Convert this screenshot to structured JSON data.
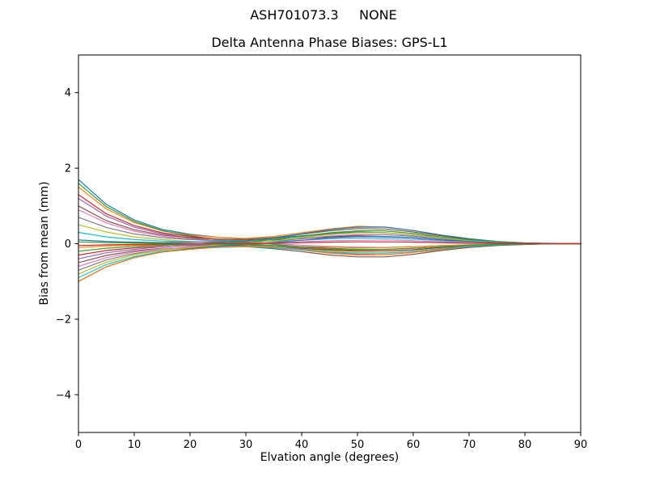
{
  "chart_data": {
    "type": "line",
    "title": "ASH701073.3     NONE",
    "subtitle": "Delta Antenna Phase Biases: GPS-L1",
    "xlabel": "Elvation angle (degrees)",
    "ylabel": "Bias from mean (mm)",
    "xlim": [
      0,
      90
    ],
    "ylim": [
      -5,
      5
    ],
    "xtick_values": [
      0,
      10,
      20,
      30,
      40,
      50,
      60,
      70,
      80,
      90
    ],
    "xtick_labels": [
      "0",
      "10",
      "20",
      "30",
      "40",
      "50",
      "60",
      "70",
      "80",
      "90"
    ],
    "ytick_values": [
      -4,
      -2,
      0,
      2,
      4
    ],
    "ytick_labels": [
      "−4",
      "−2",
      "0",
      "2",
      "4"
    ],
    "grid": false,
    "legend": "none",
    "background": "#ffffff",
    "axes_color": "#000000",
    "x": [
      0,
      5,
      10,
      15,
      20,
      25,
      30,
      35,
      40,
      45,
      50,
      55,
      60,
      65,
      70,
      75,
      80,
      85,
      90
    ],
    "series": [
      {
        "color": "#1f77b4",
        "values": [
          1.7,
          1.04,
          0.63,
          0.38,
          0.25,
          0.17,
          0.13,
          0.15,
          0.21,
          0.27,
          0.31,
          0.29,
          0.23,
          0.16,
          0.08,
          0.04,
          0.02,
          0,
          0
        ]
      },
      {
        "color": "#ff7f0e",
        "values": [
          1.5,
          0.92,
          0.56,
          0.34,
          0.23,
          0.17,
          0.14,
          0.19,
          0.29,
          0.39,
          0.46,
          0.44,
          0.35,
          0.23,
          0.13,
          0.06,
          0.02,
          0,
          0
        ]
      },
      {
        "color": "#2ca02c",
        "values": [
          1.6,
          0.98,
          0.59,
          0.35,
          0.21,
          0.11,
          0.05,
          -0.02,
          -0.08,
          -0.15,
          -0.18,
          -0.19,
          -0.16,
          -0.1,
          -0.06,
          -0.03,
          -0.01,
          0,
          0
        ]
      },
      {
        "color": "#d62728",
        "values": [
          1.3,
          0.79,
          0.48,
          0.29,
          0.19,
          0.12,
          0.1,
          0.1,
          0.14,
          0.18,
          0.21,
          0.19,
          0.16,
          0.1,
          0.06,
          0.03,
          0.01,
          0,
          0
        ]
      },
      {
        "color": "#9467bd",
        "values": [
          1.2,
          0.73,
          0.44,
          0.26,
          0.15,
          0.07,
          0.02,
          -0.06,
          -0.15,
          -0.24,
          -0.28,
          -0.29,
          -0.23,
          -0.16,
          -0.08,
          -0.04,
          -0.02,
          0,
          0
        ]
      },
      {
        "color": "#8c564b",
        "values": [
          1.0,
          0.61,
          0.37,
          0.23,
          0.16,
          0.12,
          0.11,
          0.16,
          0.25,
          0.34,
          0.4,
          0.39,
          0.31,
          0.21,
          0.11,
          0.05,
          0.02,
          0,
          0
        ]
      },
      {
        "color": "#e377c2",
        "values": [
          0.9,
          0.55,
          0.33,
          0.2,
          0.12,
          0.06,
          0.03,
          0,
          -0.04,
          -0.07,
          -0.09,
          -0.1,
          -0.08,
          -0.05,
          -0.03,
          -0.01,
          0,
          0,
          0
        ]
      },
      {
        "color": "#7f7f7f",
        "values": [
          0.7,
          0.43,
          0.26,
          0.16,
          0.11,
          0.09,
          0.08,
          0.12,
          0.19,
          0.26,
          0.3,
          0.29,
          0.23,
          0.16,
          0.08,
          0.04,
          0.02,
          0,
          0
        ]
      },
      {
        "color": "#bcbd22",
        "values": [
          0.5,
          0.31,
          0.18,
          0.11,
          0.06,
          0.02,
          -0.01,
          -0.07,
          -0.13,
          -0.2,
          -0.24,
          -0.24,
          -0.2,
          -0.13,
          -0.07,
          -0.03,
          -0.01,
          0,
          0
        ]
      },
      {
        "color": "#17becf",
        "values": [
          0.3,
          0.18,
          0.11,
          0.07,
          0.05,
          0.04,
          0.04,
          0.06,
          0.09,
          0.13,
          0.15,
          0.15,
          0.12,
          0.08,
          0.04,
          0.02,
          0.01,
          0,
          0
        ]
      },
      {
        "color": "#1f77b4",
        "values": [
          0.1,
          0.06,
          0.04,
          0.03,
          0.04,
          0.05,
          0.07,
          0.15,
          0.26,
          0.37,
          0.44,
          0.44,
          0.35,
          0.23,
          0.13,
          0.06,
          0.02,
          0.01,
          0
        ]
      },
      {
        "color": "#ff7f0e",
        "values": [
          -0.1,
          -0.06,
          -0.04,
          -0.03,
          -0.03,
          -0.04,
          -0.05,
          -0.1,
          -0.17,
          -0.25,
          -0.3,
          -0.29,
          -0.23,
          -0.16,
          -0.08,
          -0.04,
          -0.02,
          0,
          0
        ]
      },
      {
        "color": "#2ca02c",
        "values": [
          -0.2,
          -0.12,
          -0.07,
          -0.04,
          -0.01,
          0.02,
          0.04,
          0.11,
          0.2,
          0.29,
          0.34,
          0.34,
          0.27,
          0.18,
          0.1,
          0.05,
          0.02,
          0,
          0
        ]
      },
      {
        "color": "#d62728",
        "values": [
          -0.3,
          -0.18,
          -0.11,
          -0.07,
          -0.05,
          -0.04,
          -0.05,
          -0.07,
          -0.12,
          -0.17,
          -0.2,
          -0.19,
          -0.16,
          -0.1,
          -0.06,
          -0.03,
          -0.01,
          0,
          0
        ]
      },
      {
        "color": "#9467bd",
        "values": [
          -0.4,
          -0.24,
          -0.15,
          -0.08,
          -0.04,
          -0.01,
          0.02,
          0.07,
          0.13,
          0.2,
          0.24,
          0.24,
          0.2,
          0.13,
          0.07,
          0.03,
          0.01,
          0,
          0
        ]
      },
      {
        "color": "#8c564b",
        "values": [
          -0.5,
          -0.31,
          -0.19,
          -0.12,
          -0.09,
          -0.08,
          -0.08,
          -0.13,
          -0.21,
          -0.3,
          -0.35,
          -0.35,
          -0.28,
          -0.18,
          -0.1,
          -0.05,
          -0.02,
          0,
          0
        ]
      },
      {
        "color": "#e377c2",
        "values": [
          -0.6,
          -0.37,
          -0.22,
          -0.13,
          -0.08,
          -0.04,
          -0.02,
          0.01,
          0.05,
          0.08,
          0.09,
          0.1,
          0.08,
          0.05,
          0.03,
          0.01,
          0,
          0,
          0
        ]
      },
      {
        "color": "#7f7f7f",
        "values": [
          -0.7,
          -0.43,
          -0.26,
          -0.16,
          -0.11,
          -0.07,
          -0.06,
          -0.07,
          -0.1,
          -0.13,
          -0.15,
          -0.15,
          -0.12,
          -0.08,
          -0.05,
          -0.02,
          -0.01,
          0,
          0
        ]
      },
      {
        "color": "#bcbd22",
        "values": [
          -0.8,
          -0.49,
          -0.29,
          -0.17,
          -0.1,
          -0.03,
          0.01,
          0.07,
          0.16,
          0.24,
          0.29,
          0.29,
          0.23,
          0.16,
          0.08,
          0.04,
          0.01,
          0,
          0
        ]
      },
      {
        "color": "#17becf",
        "values": [
          -0.9,
          -0.55,
          -0.34,
          -0.2,
          -0.14,
          -0.1,
          -0.08,
          -0.11,
          -0.16,
          -0.22,
          -0.25,
          -0.25,
          -0.2,
          -0.13,
          -0.07,
          -0.03,
          -0.01,
          0,
          0
        ]
      },
      {
        "color": "#1f77b4",
        "values": [
          -1.0,
          -0.61,
          -0.37,
          -0.22,
          -0.13,
          -0.06,
          -0.02,
          0.03,
          0.09,
          0.16,
          0.19,
          0.19,
          0.16,
          0.1,
          0.06,
          0.03,
          0.01,
          0,
          0
        ]
      },
      {
        "color": "#ff7f0e",
        "values": [
          -1.0,
          -0.61,
          -0.37,
          -0.22,
          -0.15,
          -0.09,
          -0.07,
          -0.06,
          -0.08,
          -0.09,
          -0.11,
          -0.1,
          -0.08,
          -0.05,
          -0.03,
          -0.01,
          -0.01,
          0,
          0
        ]
      },
      {
        "color": "#2ca02c",
        "values": [
          0.05,
          0.03,
          0.02,
          0.01,
          0,
          -0.01,
          -0.02,
          -0.05,
          -0.08,
          -0.12,
          -0.15,
          -0.15,
          -0.12,
          -0.08,
          -0.04,
          -0.02,
          -0.01,
          0,
          0
        ]
      },
      {
        "color": "#d62728",
        "values": [
          -0.05,
          -0.03,
          -0.02,
          -0.01,
          0,
          0,
          0.01,
          0.01,
          0.03,
          0.04,
          0.05,
          0.05,
          0.04,
          0.03,
          0.01,
          0.01,
          0,
          0,
          0
        ]
      }
    ]
  }
}
